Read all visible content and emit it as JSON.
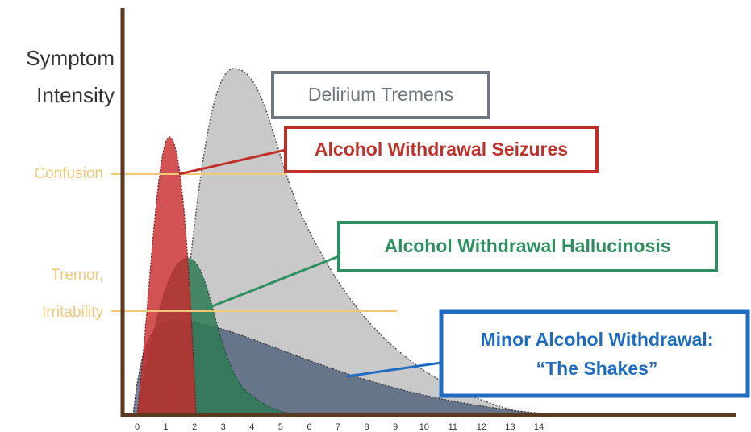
{
  "y_axis": {
    "label": [
      "Symptom",
      "Intensity"
    ],
    "levels": [
      "Confusion",
      "Tremor,",
      "Irritability"
    ]
  },
  "x_axis": {
    "ticks": [
      0,
      1,
      2,
      3,
      4,
      5,
      6,
      7,
      8,
      9,
      10,
      11,
      12,
      13,
      14
    ]
  },
  "stages": [
    {
      "label": "Delirium Tremens"
    },
    {
      "label": "Alcohol Withdrawal Seizures"
    },
    {
      "label": "Alcohol Withdrawal Hallucinosis"
    },
    {
      "label": [
        "Minor Alcohol Withdrawal:",
        "“The Shakes”"
      ]
    }
  ]
}
